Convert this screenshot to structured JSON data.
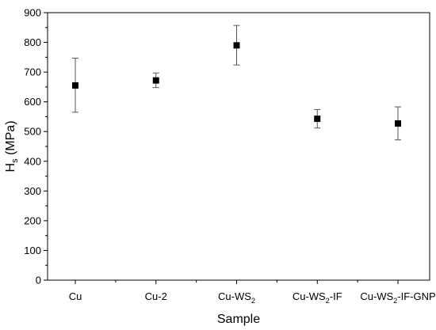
{
  "chart_data": {
    "type": "scatter",
    "title": "",
    "xlabel": "Sample",
    "ylabel": {
      "main": "H",
      "sub": "s",
      "rest": " (MPa)"
    },
    "ylim": [
      0,
      900
    ],
    "yticks": [
      0,
      100,
      200,
      300,
      400,
      500,
      600,
      700,
      800,
      900
    ],
    "grid": false,
    "legend": "none",
    "marker": "square",
    "colors": {
      "marker": "#000000",
      "errorbar": "#555555",
      "axis": "#000000"
    },
    "categories": [
      {
        "pre": "Cu",
        "sub": "",
        "post": ""
      },
      {
        "pre": "Cu-2",
        "sub": "",
        "post": ""
      },
      {
        "pre": "Cu-WS",
        "sub": "2",
        "post": ""
      },
      {
        "pre": "Cu-WS",
        "sub": "2",
        "post": "-IF"
      },
      {
        "pre": "Cu-WS",
        "sub": "2",
        "post": "-IF-GNP"
      }
    ],
    "values": [
      655,
      672,
      790,
      543,
      527
    ],
    "errors": [
      [
        565,
        747
      ],
      [
        648,
        697
      ],
      [
        724,
        857
      ],
      [
        512,
        574
      ],
      [
        472,
        583
      ]
    ]
  }
}
